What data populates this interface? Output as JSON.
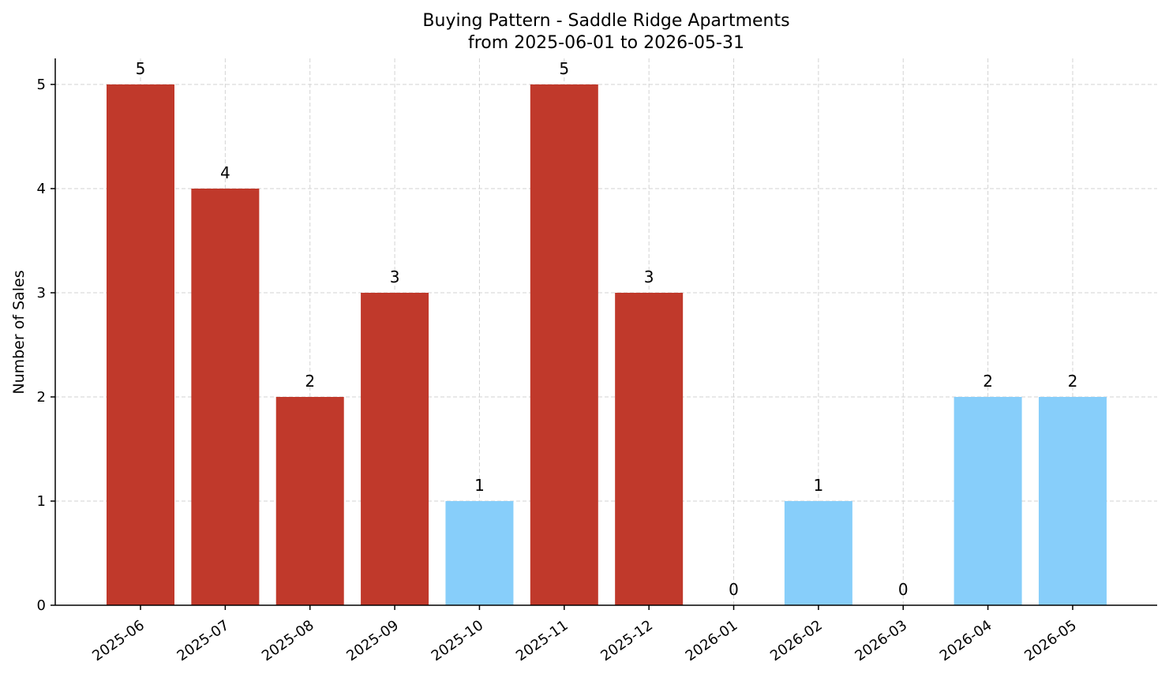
{
  "chart_data": {
    "type": "bar",
    "title": "Buying Pattern - Saddle Ridge Apartments",
    "subtitle": "from 2025-06-01 to 2026-05-31",
    "xlabel": "",
    "ylabel": "Number of Sales",
    "ylim": [
      0,
      5.25
    ],
    "yticks": [
      "0",
      "1",
      "2",
      "3",
      "4",
      "5"
    ],
    "grid": true,
    "legend": "none",
    "categories": [
      "2025-06",
      "2025-07",
      "2025-08",
      "2025-09",
      "2025-10",
      "2025-11",
      "2025-12",
      "2026-01",
      "2026-02",
      "2026-03",
      "2026-04",
      "2026-05"
    ],
    "values": [
      5,
      4,
      2,
      3,
      1,
      5,
      3,
      0,
      1,
      0,
      2,
      2
    ],
    "data_labels": [
      "5",
      "4",
      "2",
      "3",
      "1",
      "5",
      "3",
      "0",
      "1",
      "0",
      "2",
      "2"
    ],
    "bar_colors": [
      "#c0392b",
      "#c0392b",
      "#c0392b",
      "#c0392b",
      "#87cefa",
      "#c0392b",
      "#c0392b",
      "#87cefa",
      "#87cefa",
      "#87cefa",
      "#87cefa",
      "#87cefa"
    ]
  }
}
